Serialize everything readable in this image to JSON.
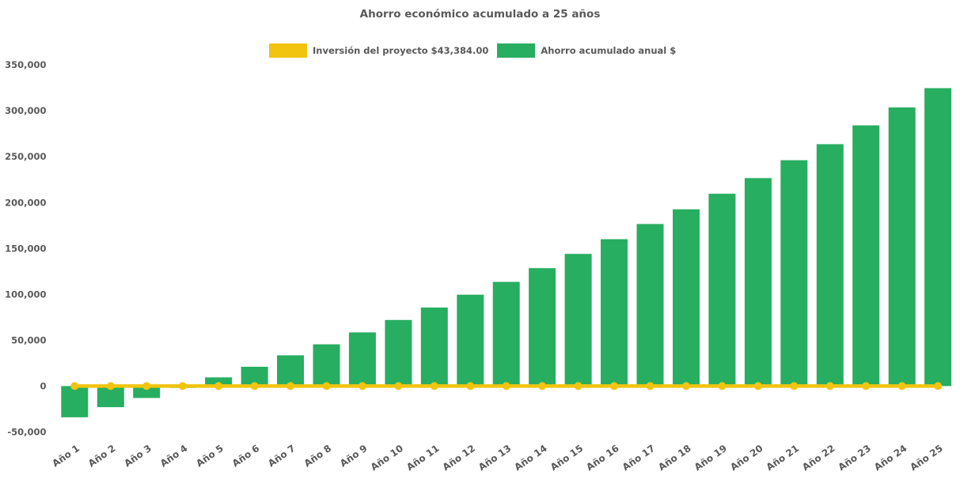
{
  "title": "Ahorro económico acumulado a 25 años",
  "colors": {
    "investment_yellow": "#F1C40F",
    "savings_green": "#27AE60",
    "text_gray": "#595959",
    "background": "#FFFFFF"
  },
  "legend": {
    "items": [
      {
        "label": "Inversión del proyecto $43,384.00",
        "color": "#F1C40F"
      },
      {
        "label": "Ahorro acumulado anual $",
        "color": "#27AE60"
      }
    ]
  },
  "chart_data": {
    "type": "bar",
    "title": "Ahorro económico acumulado a 25 años",
    "xlabel": "",
    "ylabel": "",
    "ylim": [
      -50000,
      350000
    ],
    "ytick_step": 50000,
    "ytick_labels": [
      "350,000",
      "300,000",
      "250,000",
      "200,000",
      "150,000",
      "100,000",
      "50,000",
      "0",
      "-50,000"
    ],
    "grid": false,
    "legend_position": "top",
    "categories": [
      "Año 1",
      "Año 2",
      "Año 3",
      "Año 4",
      "Año 5",
      "Año 6",
      "Año 7",
      "Año 8",
      "Año 9",
      "Año 10",
      "Año 11",
      "Año 12",
      "Año 13",
      "Año 14",
      "Año 15",
      "Año 16",
      "Año 17",
      "Año 18",
      "Año 19",
      "Año 20",
      "Año 21",
      "Año 22",
      "Año 23",
      "Año 24",
      "Año 25"
    ],
    "series": [
      {
        "name": "Inversión del proyecto $43,384.00",
        "type": "line",
        "marker": "circle",
        "color": "#F1C40F",
        "values": [
          0,
          0,
          0,
          0,
          0,
          0,
          0,
          0,
          0,
          0,
          0,
          0,
          0,
          0,
          0,
          0,
          0,
          0,
          0,
          0,
          0,
          0,
          0,
          0,
          0
        ]
      },
      {
        "name": "Ahorro acumulado anual $",
        "type": "bar",
        "color": "#27AE60",
        "values": [
          -34000,
          -23000,
          -13000,
          -2000,
          9500,
          21000,
          33500,
          45500,
          58500,
          72000,
          85500,
          99500,
          113500,
          128500,
          144000,
          160000,
          176500,
          192500,
          209500,
          226500,
          246000,
          263500,
          284000,
          303500,
          324500
        ]
      }
    ]
  }
}
